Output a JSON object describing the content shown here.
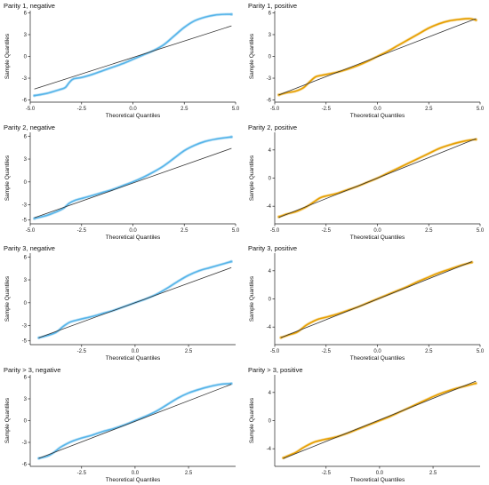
{
  "colors": {
    "negative": "#56B4E9",
    "positive": "#E69F00",
    "reference": "#333333"
  },
  "chart_data": [
    {
      "type": "scatter",
      "title": "Parity 1, negative",
      "xlabel": "Theoretical Quantiles",
      "ylabel": "Sample Quantiles",
      "xlim": [
        -5,
        5
      ],
      "ylim": [
        -6.3,
        6.3
      ],
      "xticks": [
        -5,
        -2.5,
        0,
        2.5,
        5
      ],
      "xticklabels": [
        "-5.0",
        "-2.5",
        "0.0",
        "2.5",
        "5.0"
      ],
      "yticks": [
        -6,
        -3,
        0,
        3,
        6
      ],
      "yticklabels": [
        "-6",
        "-3",
        "0",
        "3",
        "6"
      ],
      "reference_line": [
        [
          -4.8,
          -4.5
        ],
        [
          4.8,
          4.2
        ]
      ],
      "series": [
        {
          "color": "negative",
          "x": [
            -4.8,
            -4.2,
            -3.6,
            -3.3,
            -3.1,
            -2.9,
            -2.5,
            -2,
            -1.5,
            -1,
            -0.5,
            0,
            0.5,
            1,
            1.5,
            2,
            2.5,
            3,
            3.5,
            4,
            4.5,
            4.8
          ],
          "y": [
            -5.4,
            -5.1,
            -4.6,
            -4.3,
            -3.6,
            -3.1,
            -2.9,
            -2.5,
            -2,
            -1.5,
            -1,
            -0.4,
            0.2,
            0.8,
            1.6,
            2.8,
            4.0,
            4.9,
            5.4,
            5.7,
            5.8,
            5.8
          ]
        }
      ]
    },
    {
      "type": "scatter",
      "title": "Parity 1, positive",
      "xlabel": "Theoretical Quantiles",
      "ylabel": "Sample Quantiles",
      "xlim": [
        -5,
        5
      ],
      "ylim": [
        -6.3,
        6.3
      ],
      "xticks": [
        -5,
        -2.5,
        0,
        2.5,
        5
      ],
      "xticklabels": [
        "-5.0",
        "-2.5",
        "0.0",
        "2.5",
        "5.0"
      ],
      "yticks": [
        -6,
        -3,
        0,
        3,
        6
      ],
      "yticklabels": [
        "-6",
        "-3",
        "0",
        "3",
        "6"
      ],
      "reference_line": [
        [
          -4.8,
          -5.3
        ],
        [
          4.8,
          5.2
        ]
      ],
      "series": [
        {
          "color": "positive",
          "x": [
            -4.8,
            -4.4,
            -4,
            -3.6,
            -3.3,
            -3,
            -2.7,
            -2,
            -1.5,
            -1,
            -0.5,
            0,
            0.5,
            1,
            1.5,
            2,
            2.5,
            3,
            3.5,
            4,
            4.5,
            4.8
          ],
          "y": [
            -5.3,
            -5,
            -4.8,
            -4.3,
            -3.5,
            -2.8,
            -2.6,
            -2.2,
            -1.8,
            -1.3,
            -0.7,
            0,
            0.7,
            1.5,
            2.3,
            3.1,
            3.9,
            4.5,
            4.9,
            5.1,
            5.2,
            5.0
          ]
        }
      ]
    },
    {
      "type": "scatter",
      "title": "Parity 2, negative",
      "xlabel": "Theoretical Quantiles",
      "ylabel": "Sample Quantiles",
      "xlim": [
        -5,
        5
      ],
      "ylim": [
        -5.5,
        6.5
      ],
      "xticks": [
        -5,
        -2.5,
        0,
        2.5,
        5
      ],
      "xticklabels": [
        "-5.0",
        "-2.5",
        "0.0",
        "2.5",
        "5.0"
      ],
      "yticks": [
        -5,
        -3,
        0,
        3,
        6
      ],
      "yticklabels": [
        "-5",
        "-3",
        "0",
        "3",
        "6"
      ],
      "reference_line": [
        [
          -4.8,
          -4.7
        ],
        [
          4.8,
          4.4
        ]
      ],
      "series": [
        {
          "color": "negative",
          "x": [
            -4.8,
            -4.2,
            -3.8,
            -3.4,
            -3.1,
            -2.8,
            -2.4,
            -2,
            -1.5,
            -1,
            -0.5,
            0,
            0.5,
            1,
            1.5,
            2,
            2.5,
            3,
            3.5,
            4,
            4.5,
            4.8
          ],
          "y": [
            -4.8,
            -4.4,
            -4,
            -3.5,
            -2.8,
            -2.4,
            -2.1,
            -1.8,
            -1.4,
            -1.0,
            -0.5,
            0,
            0.6,
            1.3,
            2.1,
            3.1,
            4.1,
            4.8,
            5.3,
            5.6,
            5.8,
            5.9
          ]
        }
      ]
    },
    {
      "type": "scatter",
      "title": "Parity 2, positive",
      "xlabel": "Theoretical Quantiles",
      "ylabel": "Sample Quantiles",
      "xlim": [
        -5,
        5
      ],
      "ylim": [
        -6.5,
        6.5
      ],
      "xticks": [
        -5,
        -2.5,
        0,
        2.5,
        5
      ],
      "xticklabels": [
        "-5.0",
        "-2.5",
        "0.0",
        "2.5",
        "5.0"
      ],
      "yticks": [
        -4,
        0,
        4
      ],
      "yticklabels": [
        "-4",
        "0",
        "4"
      ],
      "reference_line": [
        [
          -4.8,
          -5.6
        ],
        [
          4.8,
          5.6
        ]
      ],
      "series": [
        {
          "color": "positive",
          "x": [
            -4.8,
            -4.4,
            -4,
            -3.6,
            -3.3,
            -3,
            -2.7,
            -2,
            -1.5,
            -1,
            -0.5,
            0,
            0.5,
            1,
            1.5,
            2,
            2.5,
            3,
            3.5,
            4,
            4.5,
            4.8
          ],
          "y": [
            -5.5,
            -5.1,
            -4.8,
            -4.3,
            -3.8,
            -3.2,
            -2.7,
            -2.2,
            -1.7,
            -1.2,
            -0.6,
            0,
            0.7,
            1.4,
            2.1,
            2.8,
            3.5,
            4.2,
            4.7,
            5.1,
            5.4,
            5.5
          ]
        }
      ]
    },
    {
      "type": "scatter",
      "title": "Parity 3, negative",
      "xlabel": "Theoretical Quantiles",
      "ylabel": "Sample Quantiles",
      "xlim": [
        -4.9,
        4.7
      ],
      "ylim": [
        -5.5,
        6.5
      ],
      "xticks": [
        -2.5,
        0,
        2.5
      ],
      "xticklabels": [
        "-2.5",
        "0.0",
        "2.5"
      ],
      "yticks": [
        -5,
        -3,
        0,
        3,
        6
      ],
      "yticklabels": [
        "-5",
        "-3",
        "0",
        "3",
        "6"
      ],
      "reference_line": [
        [
          -4.5,
          -4.6
        ],
        [
          4.5,
          4.6
        ]
      ],
      "series": [
        {
          "color": "negative",
          "x": [
            -4.5,
            -4.1,
            -3.7,
            -3.4,
            -3.2,
            -3,
            -2.6,
            -2,
            -1.5,
            -1,
            -0.5,
            0,
            0.5,
            1,
            1.5,
            2,
            2.5,
            3,
            3.5,
            4,
            4.5
          ],
          "y": [
            -4.6,
            -4.3,
            -3.9,
            -3.2,
            -2.8,
            -2.5,
            -2.2,
            -1.8,
            -1.4,
            -1,
            -0.5,
            0,
            0.5,
            1.1,
            1.9,
            2.8,
            3.6,
            4.2,
            4.6,
            5,
            5.4
          ]
        }
      ]
    },
    {
      "type": "scatter",
      "title": "Parity 3, positive",
      "xlabel": "Theoretical Quantiles",
      "ylabel": "Sample Quantiles",
      "xlim": [
        -5,
        5
      ],
      "ylim": [
        -6.5,
        6.5
      ],
      "xticks": [
        -5,
        -2.5,
        0,
        2.5,
        5
      ],
      "xticklabels": [
        "-5.0",
        "-2.5",
        "0.0",
        "2.5",
        "5.0"
      ],
      "yticks": [
        -4,
        0,
        4
      ],
      "yticklabels": [
        "-4",
        "0",
        "4"
      ],
      "reference_line": [
        [
          -4.7,
          -5.5
        ],
        [
          4.6,
          5.3
        ]
      ],
      "series": [
        {
          "color": "positive",
          "x": [
            -4.7,
            -4.3,
            -3.9,
            -3.5,
            -3.2,
            -2.9,
            -2.5,
            -2,
            -1.5,
            -1,
            -0.5,
            0,
            0.5,
            1,
            1.5,
            2,
            2.5,
            3,
            3.5,
            4,
            4.6
          ],
          "y": [
            -5.5,
            -5.1,
            -4.7,
            -3.8,
            -3.3,
            -2.9,
            -2.6,
            -2.2,
            -1.7,
            -1.2,
            -0.6,
            0,
            0.6,
            1.2,
            1.8,
            2.5,
            3.1,
            3.7,
            4.2,
            4.7,
            5.2
          ]
        }
      ]
    },
    {
      "type": "scatter",
      "title": "Parity > 3, negative",
      "xlabel": "Theoretical Quantiles",
      "ylabel": "Sample Quantiles",
      "xlim": [
        -4.9,
        4.7
      ],
      "ylim": [
        -6.3,
        6.3
      ],
      "xticks": [
        -2.5,
        0,
        2.5
      ],
      "xticklabels": [
        "-2.5",
        "0.0",
        "2.5"
      ],
      "yticks": [
        -6,
        -3,
        0,
        3,
        6
      ],
      "yticklabels": [
        "-6",
        "-3",
        "0",
        "3",
        "6"
      ],
      "reference_line": [
        [
          -4.5,
          -5.2
        ],
        [
          4.5,
          5.0
        ]
      ],
      "series": [
        {
          "color": "negative",
          "x": [
            -4.5,
            -4.1,
            -3.8,
            -3.5,
            -3.2,
            -2.9,
            -2.5,
            -2,
            -1.5,
            -1,
            -0.5,
            0,
            0.5,
            1,
            1.5,
            2,
            2.5,
            3,
            3.5,
            4,
            4.5
          ],
          "y": [
            -5.2,
            -4.9,
            -4.4,
            -3.7,
            -3.2,
            -2.8,
            -2.4,
            -2,
            -1.5,
            -1.1,
            -0.6,
            0,
            0.6,
            1.3,
            2.2,
            3.1,
            3.8,
            4.3,
            4.7,
            5,
            5.1
          ]
        }
      ]
    },
    {
      "type": "scatter",
      "title": "Parity > 3, positive",
      "xlabel": "Theoretical Quantiles",
      "ylabel": "Sample Quantiles",
      "xlim": [
        -4.9,
        4.7
      ],
      "ylim": [
        -6.5,
        6.5
      ],
      "xticks": [
        -2.5,
        0,
        2.5
      ],
      "xticklabels": [
        "-2.5",
        "0.0",
        "2.5"
      ],
      "yticks": [
        -4,
        0,
        4
      ],
      "yticklabels": [
        "-4",
        "0",
        "4"
      ],
      "reference_line": [
        [
          -4.5,
          -5.4
        ],
        [
          4.5,
          5.6
        ]
      ],
      "series": [
        {
          "color": "positive",
          "x": [
            -4.5,
            -4.2,
            -3.9,
            -3.6,
            -3.3,
            -3,
            -2.6,
            -2,
            -1.5,
            -1,
            -0.5,
            0,
            0.5,
            1,
            1.5,
            2,
            2.5,
            3,
            3.5,
            4,
            4.5
          ],
          "y": [
            -5.3,
            -4.9,
            -4.5,
            -3.9,
            -3.4,
            -3.0,
            -2.7,
            -2.3,
            -1.8,
            -1.2,
            -0.6,
            0,
            0.6,
            1.3,
            2.0,
            2.7,
            3.4,
            4.0,
            4.5,
            4.9,
            5.3
          ]
        }
      ]
    }
  ]
}
